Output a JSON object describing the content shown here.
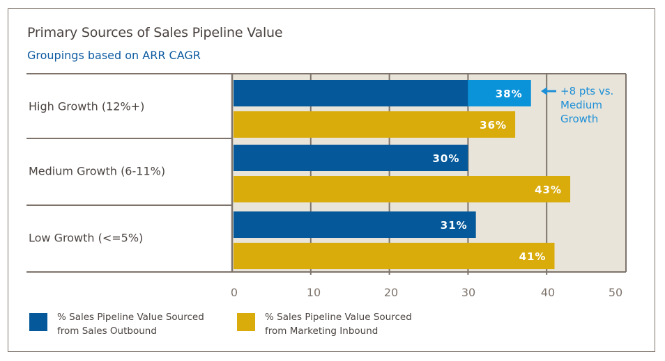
{
  "chart_data": {
    "type": "bar",
    "orientation": "horizontal",
    "title": "Primary Sources of Sales Pipeline Value",
    "subtitle": "Groupings based on ARR CAGR",
    "categories": [
      "High Growth (12%+)",
      "Medium Growth (6-11%)",
      "Low Growth (<=5%)"
    ],
    "series": [
      {
        "name": "% Sales Pipeline Value Sourced from Sales Outbound",
        "color": "#05599a",
        "values": [
          38,
          30,
          31
        ],
        "labels": [
          "38%",
          "30%",
          "31%"
        ]
      },
      {
        "name": "% Sales Pipeline Value Sourced from Marketing Inbound",
        "color": "#d9ac0c",
        "values": [
          36,
          43,
          41
        ],
        "labels": [
          "36%",
          "43%",
          "41%"
        ]
      }
    ],
    "highlight": {
      "category_index": 0,
      "series_index": 0,
      "from": 30,
      "to": 38,
      "color": "#0b93da"
    },
    "annotation": {
      "lines": [
        "+8 pts vs.",
        "Medium",
        "Growth"
      ],
      "arrow": "left",
      "color": "#1d8fd6"
    },
    "xlim": [
      0,
      50
    ],
    "xticks": [
      0,
      10,
      20,
      30,
      40,
      50
    ],
    "xtick_labels": [
      "0",
      "10",
      "20",
      "30",
      "40",
      "50"
    ],
    "gridlines": [
      10,
      20,
      30,
      40
    ],
    "grid": true,
    "xlabel": "",
    "ylabel": "",
    "legend_position": "bottom-left",
    "plot_background": "#e8e4da",
    "grid_color": "#7d736b"
  },
  "legend": {
    "items": [
      {
        "label": "% Sales Pipeline Value Sourced from Sales Outbound",
        "color": "#05599a"
      },
      {
        "label": "% Sales Pipeline Value  Sourced from Marketing Inbound",
        "color": "#d9ac0c"
      }
    ]
  }
}
